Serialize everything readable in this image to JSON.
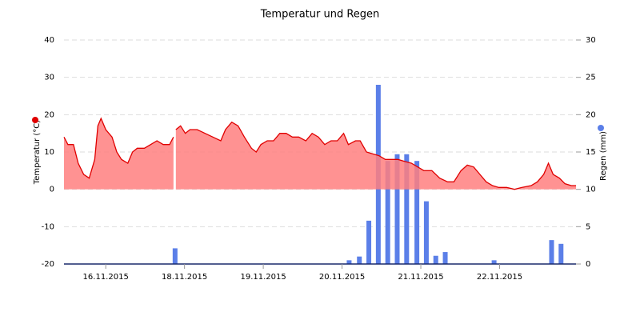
{
  "chart_data": {
    "type": "line_bar",
    "title": "Temperatur und Regen",
    "xlim": [
      0,
      6.5
    ],
    "xticks": [
      {
        "value": 0.53,
        "label": "16.11.2015"
      },
      {
        "value": 1.53,
        "label": "18.11.2015"
      },
      {
        "value": 2.53,
        "label": "19.11.2015"
      },
      {
        "value": 3.53,
        "label": "20.11.2015"
      },
      {
        "value": 4.53,
        "label": "21.11.2015"
      },
      {
        "value": 5.53,
        "label": "22.11.2015"
      }
    ],
    "ylim": [
      -20,
      40
    ],
    "yticks": [
      -20,
      -10,
      0,
      10,
      20,
      30,
      40
    ],
    "y2lim": [
      0,
      30
    ],
    "y2ticks": [
      0,
      5,
      10,
      15,
      20,
      25,
      30
    ],
    "grid": true,
    "series": [
      {
        "name": "Temperatur (°C)",
        "type": "area",
        "color": "#e00000",
        "fill": "#ff7f7f",
        "x": [
          0,
          0.05,
          0.12,
          0.18,
          0.25,
          0.32,
          0.39,
          0.43,
          0.47,
          0.53,
          0.61,
          0.67,
          0.73,
          0.81,
          0.87,
          0.93,
          1.02,
          1.1,
          1.18,
          1.26,
          1.34,
          1.39,
          1.4,
          1.42,
          1.48,
          1.54,
          1.6,
          1.69,
          1.79,
          1.89,
          1.99,
          2.05,
          2.13,
          2.21,
          2.29,
          2.38,
          2.44,
          2.5,
          2.58,
          2.66,
          2.74,
          2.82,
          2.9,
          2.98,
          3.07,
          3.15,
          3.23,
          3.31,
          3.39,
          3.47,
          3.55,
          3.61,
          3.7,
          3.76,
          3.84,
          3.92,
          4.0,
          4.08,
          4.16,
          4.24,
          4.32,
          4.41,
          4.49,
          4.57,
          4.67,
          4.77,
          4.87,
          4.95,
          5.04,
          5.12,
          5.2,
          5.28,
          5.36,
          5.44,
          5.52,
          5.62,
          5.72,
          5.81,
          5.93,
          6.01,
          6.09,
          6.15,
          6.21,
          6.29,
          6.36,
          6.44,
          6.5
        ],
        "values": [
          14,
          12,
          12,
          7,
          4,
          3,
          8,
          17,
          19,
          16,
          14,
          10,
          8,
          7,
          10,
          11,
          11,
          12,
          13,
          12,
          12,
          14,
          null,
          16,
          17,
          15,
          16,
          16,
          15,
          14,
          13,
          16,
          18,
          17,
          14,
          11,
          10,
          12,
          13,
          13,
          15,
          15,
          14,
          14,
          13,
          15,
          14,
          12,
          13,
          13,
          15,
          12,
          13,
          13,
          10,
          9.5,
          9,
          8,
          8,
          8,
          7.5,
          7,
          6,
          5,
          5,
          3,
          2,
          2,
          5,
          6.5,
          6,
          4,
          2,
          1,
          0.5,
          0.5,
          0,
          0.5,
          1,
          2,
          4,
          7,
          4,
          3,
          1.5,
          1,
          1
        ]
      },
      {
        "name": "Regen (mm)",
        "type": "bar",
        "axis": "y2",
        "color": "#5b7fe8",
        "x": [
          1.41,
          3.62,
          3.75,
          3.87,
          3.99,
          4.11,
          4.23,
          4.35,
          4.48,
          4.6,
          4.72,
          4.84,
          5.46,
          6.19,
          6.31
        ],
        "values": [
          2.1,
          0.5,
          1,
          5.8,
          24,
          13.8,
          14.7,
          14.7,
          13.8,
          8.4,
          1.1,
          1.6,
          0.5,
          3.2,
          2.7
        ]
      }
    ]
  }
}
